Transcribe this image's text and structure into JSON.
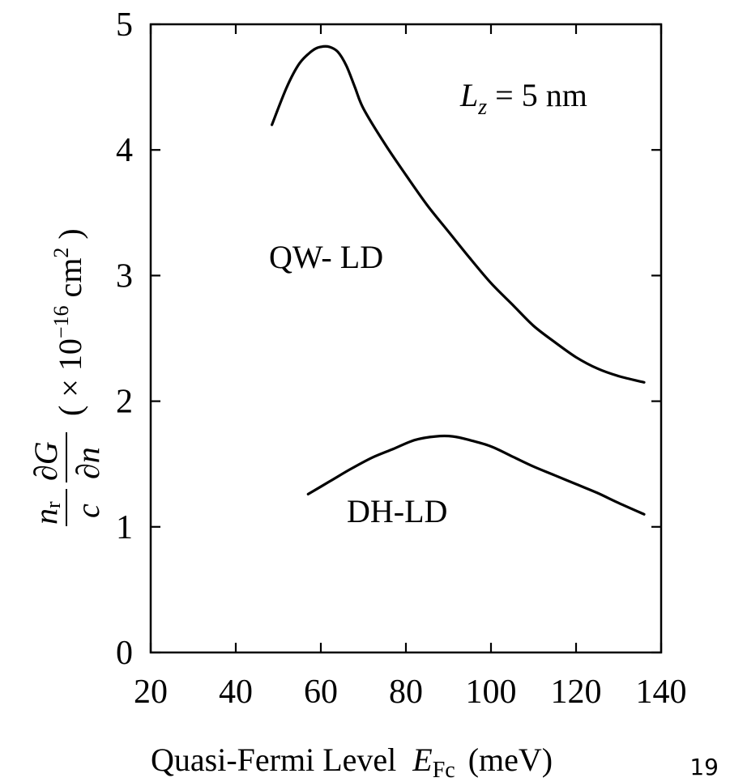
{
  "chart_data": {
    "type": "line",
    "xlabel": {
      "text": "Quasi-Fermi Level",
      "var": "E",
      "var_sub": "Fc",
      "unit": "(meV)"
    },
    "ylabel": {
      "numerator_left": "n",
      "numerator_left_sub": "r",
      "denominator_left": "c",
      "numerator_right": "∂G",
      "denominator_right": "∂n",
      "unit_open": "( × 10",
      "unit_exp": "−16",
      "unit_mid": " cm",
      "unit_exp2": "2",
      "unit_close": " )"
    },
    "xlim": [
      20,
      140
    ],
    "ylim": [
      0,
      5
    ],
    "xticks": [
      20,
      40,
      60,
      80,
      100,
      120,
      140
    ],
    "yticks": [
      0,
      1,
      2,
      3,
      4,
      5
    ],
    "xtick_labels": [
      "20",
      "40",
      "60",
      "80",
      "100",
      "120",
      "140"
    ],
    "ytick_labels": [
      "0",
      "1",
      "2",
      "3",
      "4",
      "5"
    ],
    "grid": false,
    "annotations": {
      "lz": {
        "var": "L",
        "sub": "z",
        "text": " = 5 nm"
      }
    },
    "series": [
      {
        "name": "QW- LD",
        "x": [
          48.5,
          52,
          55,
          58,
          60,
          62,
          64,
          66,
          68,
          70,
          75,
          80,
          85,
          90,
          95,
          100,
          105,
          110,
          115,
          120,
          125,
          130,
          136
        ],
        "y": [
          4.2,
          4.5,
          4.69,
          4.79,
          4.82,
          4.82,
          4.78,
          4.67,
          4.5,
          4.33,
          4.05,
          3.8,
          3.56,
          3.35,
          3.14,
          2.94,
          2.77,
          2.6,
          2.47,
          2.35,
          2.26,
          2.2,
          2.15
        ]
      },
      {
        "name": "DH-LD",
        "x": [
          57,
          62,
          67,
          72,
          77,
          82,
          87,
          91,
          95,
          100,
          105,
          110,
          115,
          120,
          125,
          130,
          136
        ],
        "y": [
          1.26,
          1.36,
          1.46,
          1.55,
          1.62,
          1.69,
          1.72,
          1.72,
          1.69,
          1.64,
          1.56,
          1.48,
          1.41,
          1.34,
          1.27,
          1.19,
          1.1
        ]
      }
    ]
  },
  "slide_number": "19"
}
